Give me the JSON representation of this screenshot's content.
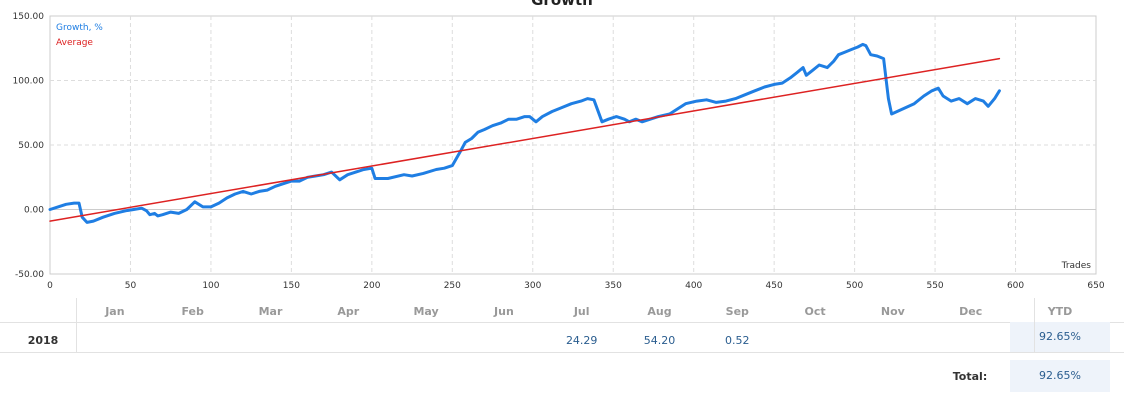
{
  "chart_data": {
    "type": "line",
    "title": "Growth",
    "xlabel": "Trades",
    "xlim": [
      0,
      650
    ],
    "ylim": [
      -50,
      150
    ],
    "x_ticks": [
      0,
      50,
      100,
      150,
      200,
      250,
      300,
      350,
      400,
      450,
      500,
      550,
      600,
      650
    ],
    "y_ticks": [
      -50,
      0,
      50,
      100,
      150
    ],
    "y_tick_labels": [
      "-50.00",
      "0.00",
      "50.00",
      "100.00",
      "150.00"
    ],
    "grid": true,
    "legend": "top-left",
    "series": [
      {
        "name": "Growth, %",
        "color": "#1f7ee3",
        "x": [
          0,
          5,
          10,
          15,
          18,
          20,
          23,
          27,
          33,
          40,
          47,
          52,
          57,
          60,
          62,
          65,
          67,
          70,
          75,
          80,
          85,
          90,
          95,
          100,
          105,
          110,
          115,
          120,
          125,
          130,
          135,
          140,
          145,
          150,
          155,
          160,
          165,
          170,
          175,
          180,
          185,
          190,
          195,
          200,
          202,
          210,
          220,
          225,
          232,
          240,
          245,
          250,
          255,
          258,
          262,
          266,
          270,
          275,
          280,
          285,
          290,
          295,
          298,
          302,
          306,
          312,
          318,
          324,
          330,
          334,
          338,
          343,
          347,
          352,
          357,
          360,
          364,
          368,
          373,
          378,
          385,
          390,
          395,
          402,
          408,
          414,
          420,
          426,
          432,
          438,
          444,
          450,
          455,
          460,
          464,
          468,
          470,
          474,
          478,
          483,
          487,
          490,
          494,
          498,
          502,
          505,
          507,
          510,
          514,
          518,
          521,
          523,
          530,
          537,
          543,
          548,
          552,
          555,
          560,
          565,
          570,
          575,
          580,
          583,
          587,
          590
        ],
        "y": [
          0,
          2,
          4,
          5,
          5,
          -6,
          -10,
          -9,
          -6,
          -3,
          -1,
          0,
          1,
          -1,
          -4,
          -3,
          -5,
          -4,
          -2,
          -3,
          0,
          6,
          2,
          2,
          5,
          9,
          12,
          14,
          12,
          14,
          15,
          18,
          20,
          22,
          22,
          25,
          26,
          27,
          29,
          23,
          27,
          29,
          31,
          32,
          24,
          24,
          27,
          26,
          28,
          31,
          32,
          34,
          45,
          52,
          55,
          60,
          62,
          65,
          67,
          70,
          70,
          72,
          72,
          68,
          72,
          76,
          79,
          82,
          84,
          86,
          85,
          68,
          70,
          72,
          70,
          68,
          70,
          68,
          70,
          72,
          74,
          78,
          82,
          84,
          85,
          83,
          84,
          86,
          89,
          92,
          95,
          97,
          98,
          102,
          106,
          110,
          104,
          108,
          112,
          110,
          115,
          120,
          122,
          124,
          126,
          128,
          127,
          120,
          119,
          117,
          86,
          74,
          78,
          82,
          88,
          92,
          94,
          88,
          84,
          86,
          82,
          86,
          84,
          80,
          86,
          92
        ]
      },
      {
        "name": "Average",
        "color": "#dd2222",
        "x": [
          0,
          590
        ],
        "y": [
          -9,
          117
        ]
      }
    ]
  },
  "table": {
    "months": [
      "Jan",
      "Feb",
      "Mar",
      "Apr",
      "May",
      "Jun",
      "Jul",
      "Aug",
      "Sep",
      "Oct",
      "Nov",
      "Dec"
    ],
    "ytd_header": "YTD",
    "year": "2018",
    "values": [
      "",
      "",
      "",
      "",
      "",
      "",
      "24.29",
      "54.20",
      "0.52",
      "",
      "",
      ""
    ],
    "ytd_value": "92.65%",
    "total_label": "Total:",
    "total_value": "92.65%"
  }
}
